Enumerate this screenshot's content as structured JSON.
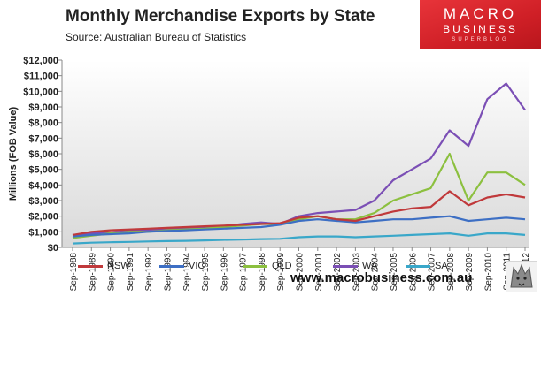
{
  "header": {
    "title": "Monthly Merchandise Exports by State",
    "subtitle": "Source:  Australian Bureau of Statistics"
  },
  "logo": {
    "line1": "MACRO",
    "line2": "BUSINESS",
    "line3": "SUPERBLOG"
  },
  "footer": {
    "website": "www.macrobusiness.com.au"
  },
  "chart_data": {
    "type": "line",
    "title": "Monthly Merchandise Exports by State",
    "xlabel": "",
    "ylabel": "Millions (FOB Value)",
    "ylim": [
      0,
      12000
    ],
    "yticks": [
      "$0",
      "$1,000",
      "$2,000",
      "$3,000",
      "$4,000",
      "$5,000",
      "$6,000",
      "$7,000",
      "$8,000",
      "$9,000",
      "$10,000",
      "$11,000",
      "$12,000"
    ],
    "x": [
      "Sep-1988",
      "Sep-1989",
      "Sep-1990",
      "Sep-1991",
      "Sep-1992",
      "Sep-1993",
      "Sep-1994",
      "Sep-1995",
      "Sep-1996",
      "Sep-1997",
      "Sep-1998",
      "Sep-1999",
      "Sep-2000",
      "Sep-2001",
      "Sep-2002",
      "Sep-2003",
      "Sep-2004",
      "Sep-2005",
      "Sep-2006",
      "Sep-2007",
      "Sep-2008",
      "Sep-2009",
      "Sep-2010",
      "Sep-2011",
      "Sep-2012"
    ],
    "legend_position": "bottom",
    "grid": false,
    "series": [
      {
        "name": "NSW",
        "color": "#c0393b",
        "values": [
          800,
          1000,
          1100,
          1150,
          1200,
          1250,
          1300,
          1350,
          1400,
          1450,
          1500,
          1550,
          1900,
          2000,
          1800,
          1700,
          2000,
          2300,
          2500,
          2600,
          3600,
          2700,
          3200,
          3400,
          3200
        ]
      },
      {
        "name": "VIC",
        "color": "#3d6fc4",
        "values": [
          700,
          800,
          850,
          900,
          1000,
          1050,
          1100,
          1150,
          1200,
          1250,
          1300,
          1450,
          1700,
          1800,
          1700,
          1600,
          1700,
          1800,
          1800,
          1900,
          2000,
          1700,
          1800,
          1900,
          1800
        ]
      },
      {
        "name": "QLD",
        "color": "#8cc03f",
        "values": [
          600,
          750,
          900,
          1000,
          1000,
          1100,
          1150,
          1200,
          1300,
          1400,
          1500,
          1500,
          1800,
          2000,
          1800,
          1800,
          2200,
          3000,
          3400,
          3800,
          6000,
          3000,
          4800,
          4800,
          4000
        ]
      },
      {
        "name": "WA",
        "color": "#7b4fb5",
        "values": [
          800,
          900,
          950,
          1050,
          1100,
          1150,
          1200,
          1250,
          1350,
          1500,
          1600,
          1500,
          2000,
          2200,
          2300,
          2400,
          3000,
          4300,
          5000,
          5700,
          7500,
          6500,
          9500,
          10500,
          8800
        ]
      },
      {
        "name": "SA",
        "color": "#39a7c9",
        "values": [
          250,
          300,
          330,
          350,
          380,
          400,
          420,
          450,
          480,
          500,
          530,
          550,
          650,
          700,
          700,
          650,
          700,
          750,
          800,
          850,
          900,
          750,
          900,
          900,
          800
        ]
      }
    ]
  }
}
